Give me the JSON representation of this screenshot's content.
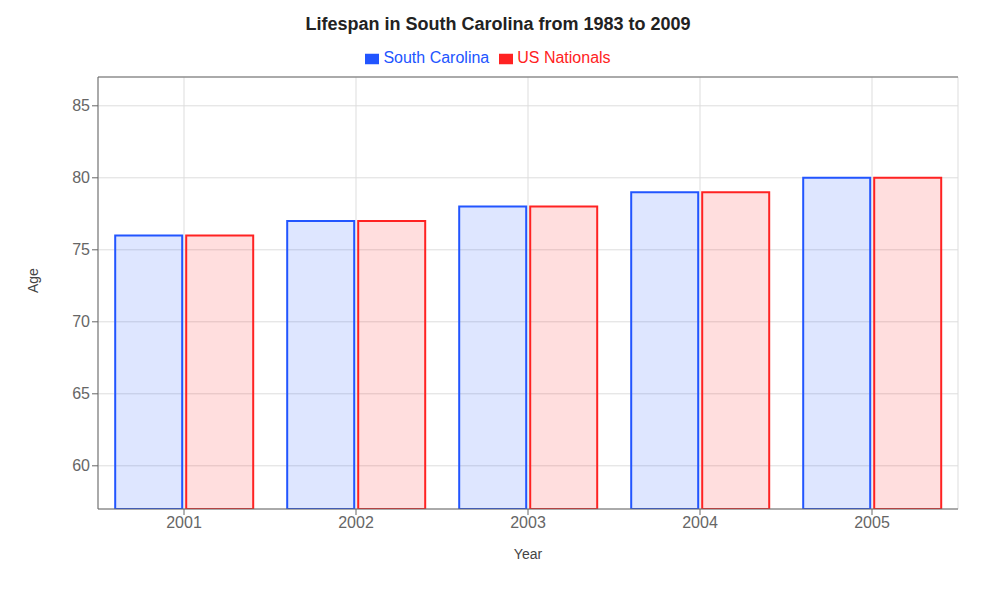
{
  "chart_data": {
    "type": "bar",
    "title": "Lifespan in South Carolina from 1983 to 2009",
    "x_label": "Year",
    "y_label": "Age",
    "categories": [
      "2001",
      "2002",
      "2003",
      "2004",
      "2005"
    ],
    "series": [
      {
        "name": "South Carolina",
        "color": "#2255ff",
        "values": [
          76,
          77,
          78,
          79,
          80
        ]
      },
      {
        "name": "US Nationals",
        "color": "#ff2222",
        "values": [
          76,
          77,
          78,
          79,
          80
        ]
      }
    ],
    "ylim": [
      57,
      87
    ],
    "yticks": [
      60,
      65,
      70,
      75,
      80,
      85
    ],
    "grid": true,
    "legend": "top"
  }
}
